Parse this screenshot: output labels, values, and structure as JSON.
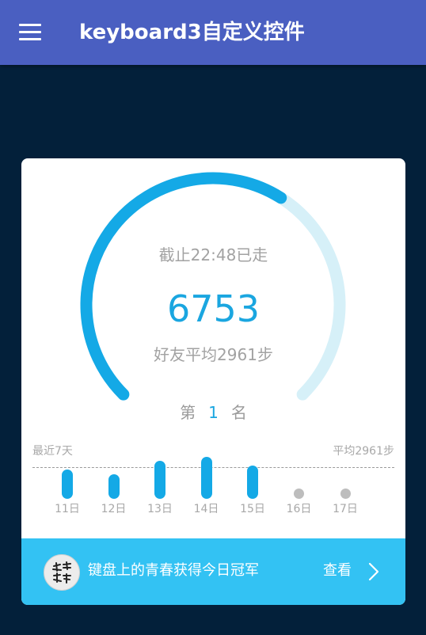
{
  "app": {
    "title": "keyboard3自定义控件",
    "menu_icon": "hamburger-menu-icon",
    "colors": {
      "appbar": "#4a5fc1",
      "background": "#03203a",
      "accent": "#14a9e6",
      "banner": "#33c2f3"
    }
  },
  "card": {
    "deadline_text": "截止22:48已走",
    "steps": "6753",
    "friend_avg_text": "好友平均2961步",
    "rank": {
      "prefix": "第",
      "number": "1",
      "suffix": "名"
    },
    "progress_fraction": 0.62,
    "recent_label": "最近7天",
    "avg_label": "平均2961步",
    "days": [
      {
        "label": "11日",
        "has_data": true,
        "level": 0.69
      },
      {
        "label": "12日",
        "has_data": true,
        "level": 0.59
      },
      {
        "label": "13日",
        "has_data": true,
        "level": 0.9
      },
      {
        "label": "14日",
        "has_data": true,
        "level": 1.0
      },
      {
        "label": "15日",
        "has_data": true,
        "level": 0.79
      },
      {
        "label": "16日",
        "has_data": false,
        "level": 0
      },
      {
        "label": "17日",
        "has_data": false,
        "level": 0
      }
    ]
  },
  "banner": {
    "text": "键盘上的青春获得今日冠军",
    "view_label": "查看",
    "avatar_icon": "calligraphy-avatar-icon",
    "chevron_icon": "chevron-right-icon"
  }
}
